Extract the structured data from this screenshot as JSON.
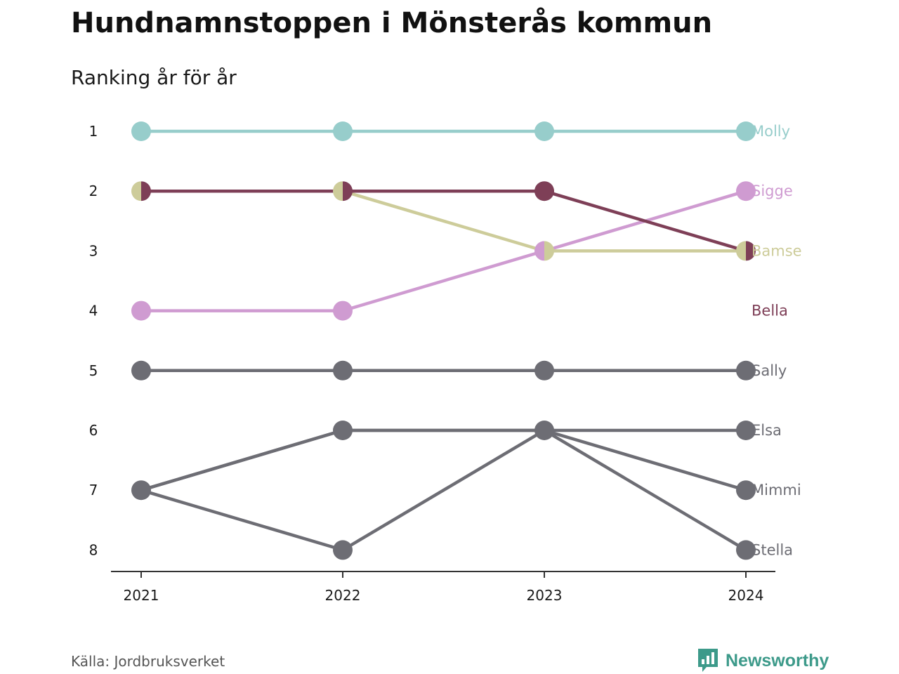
{
  "chart_data": {
    "type": "line",
    "title": "Hundnamnstoppen i Mönsterås kommun",
    "subtitle": "Ranking år för år",
    "x": [
      "2021",
      "2022",
      "2023",
      "2024"
    ],
    "ylim": [
      1,
      8
    ],
    "y_reversed": true,
    "y_ticks": [
      "1",
      "2",
      "3",
      "4",
      "5",
      "6",
      "7",
      "8"
    ],
    "grid": false,
    "series": [
      {
        "name": "Molly",
        "values": [
          1,
          1,
          1,
          1
        ],
        "color": "#97cdcb"
      },
      {
        "name": "Sigge",
        "values": [
          4,
          4,
          3,
          2
        ],
        "color": "#cf9bd1"
      },
      {
        "name": "Bamse",
        "values": [
          2,
          2,
          3,
          3
        ],
        "color": "#cdcc9a"
      },
      {
        "name": "Bella",
        "values": [
          2,
          2,
          2,
          3
        ],
        "color": "#7e3f57"
      },
      {
        "name": "Sally",
        "values": [
          5,
          5,
          5,
          5
        ],
        "color": "#6d6d74"
      },
      {
        "name": "Elsa",
        "values": [
          7,
          6,
          6,
          6
        ],
        "color": "#6d6d74"
      },
      {
        "name": "Mimmi",
        "values": [
          7,
          8,
          6,
          7
        ],
        "color": "#6d6d74"
      },
      {
        "name": "Stella",
        "values": [
          7,
          6,
          6,
          8
        ],
        "color": "#6d6d74"
      }
    ],
    "end_labels": [
      {
        "name": "Molly",
        "rank": 1,
        "color": "#97cdcb"
      },
      {
        "name": "Sigge",
        "rank": 2,
        "color": "#cf9bd1"
      },
      {
        "name": "Bamse",
        "rank": 3,
        "color": "#cdcc9a"
      },
      {
        "name": "Bella",
        "rank": 4,
        "color": "#7e3f57"
      },
      {
        "name": "Sally",
        "rank": 5,
        "color": "#6d6d74"
      },
      {
        "name": "Elsa",
        "rank": 6,
        "color": "#6d6d74"
      },
      {
        "name": "Mimmi",
        "rank": 7,
        "color": "#6d6d74"
      },
      {
        "name": "Stella",
        "rank": 8,
        "color": "#6d6d74"
      }
    ]
  },
  "footer": {
    "source": "Källa: Jordbruksverket",
    "brand": "Newsworthy",
    "brand_icon": "newsworthy-logo-icon",
    "brand_color": "#3d9a8a"
  }
}
